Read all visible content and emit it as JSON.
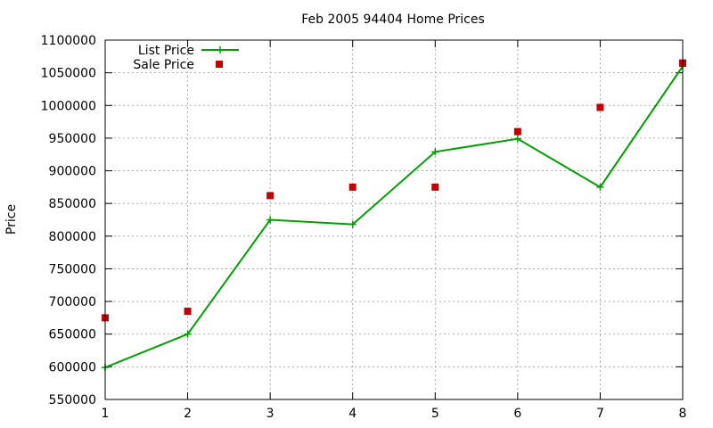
{
  "chart_data": {
    "type": "line",
    "title": "Feb 2005 94404 Home Prices",
    "xlabel": "",
    "ylabel": "Price",
    "x": [
      1,
      2,
      3,
      4,
      5,
      6,
      7,
      8
    ],
    "xlim": [
      1,
      8
    ],
    "ylim": [
      550000,
      1100000
    ],
    "x_ticks": [
      "1",
      "2",
      "3",
      "4",
      "5",
      "6",
      "7",
      "8"
    ],
    "y_ticks": [
      "550000",
      "600000",
      "650000",
      "700000",
      "750000",
      "800000",
      "850000",
      "900000",
      "950000",
      "1000000",
      "1050000",
      "1100000"
    ],
    "grid": true,
    "legend_position": "top-left",
    "series": [
      {
        "name": "List Price",
        "kind": "line",
        "marker": "plus",
        "color": "#00a000",
        "values": [
          599000,
          650000,
          825000,
          818000,
          929000,
          949000,
          875000,
          1060000
        ]
      },
      {
        "name": "Sale Price",
        "kind": "scatter",
        "marker": "square",
        "color": "#c00000",
        "values": [
          675000,
          685000,
          862000,
          875000,
          875000,
          960000,
          997000,
          1065000
        ]
      }
    ]
  }
}
